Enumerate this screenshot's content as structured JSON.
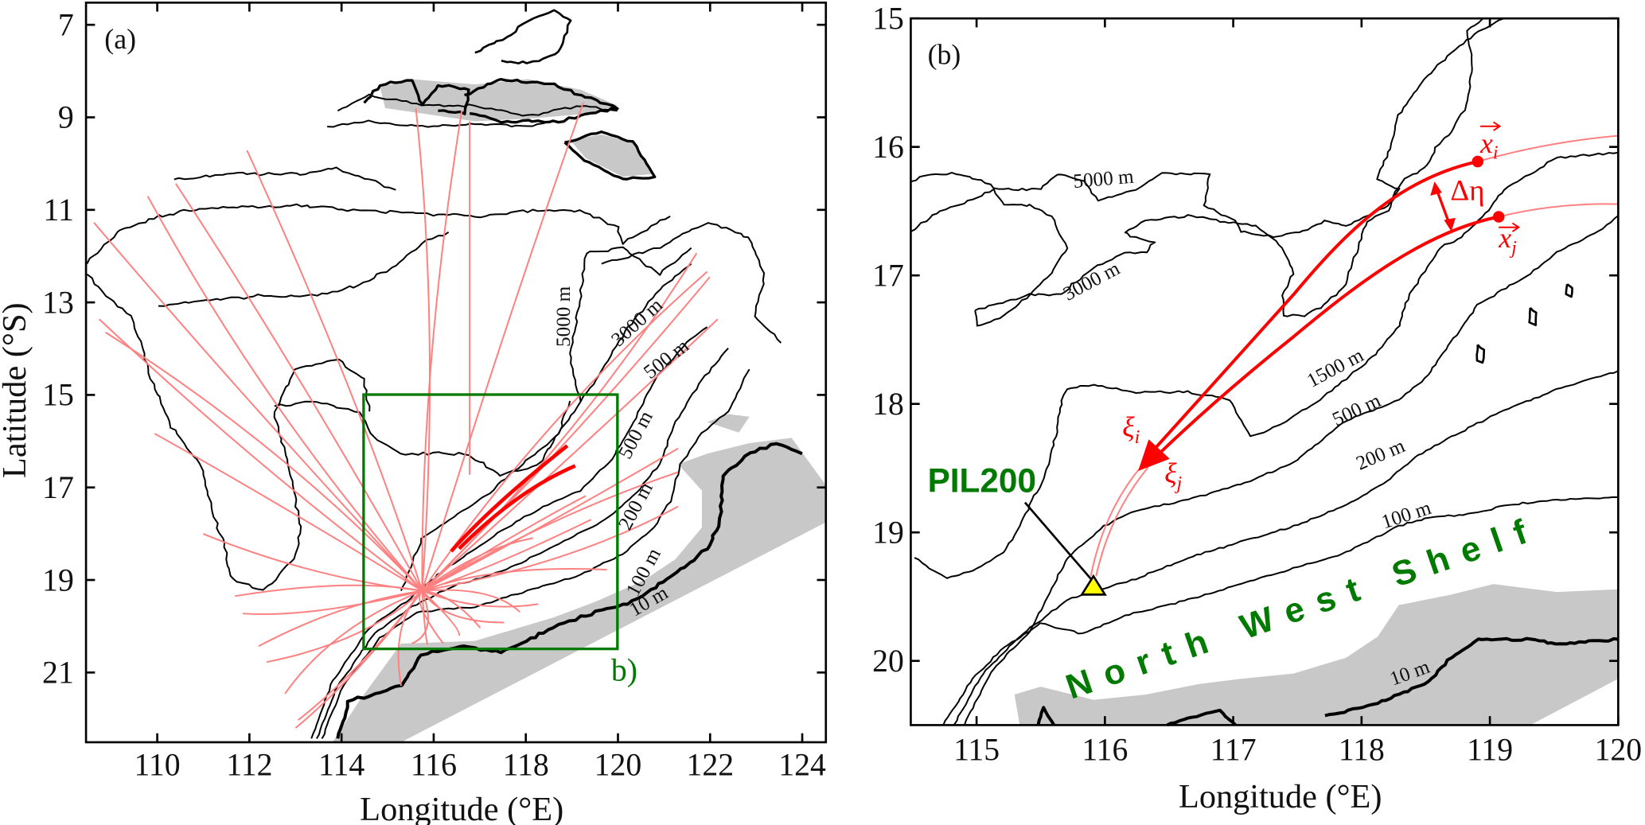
{
  "panel_a": {
    "label": "(a)",
    "xlabel": "Longitude (°E)",
    "ylabel": "Latitude (°S)",
    "xticks": [
      110,
      112,
      114,
      116,
      118,
      120,
      122,
      124
    ],
    "yticks": [
      7,
      9,
      11,
      13,
      15,
      17,
      19,
      21
    ],
    "xlim": [
      108.6,
      124.5
    ],
    "ylim": [
      6.5,
      22.5
    ],
    "inset_box": {
      "lon": [
        114.5,
        120
      ],
      "lat": [
        15,
        20.5
      ],
      "label": "b)"
    },
    "contour_labels": [
      "5000 m",
      "3000 m",
      "500 m",
      "500 m",
      "200 m",
      "100 m",
      "10 m"
    ]
  },
  "panel_b": {
    "label": "(b)",
    "xlabel": "Longitude (°E)",
    "xticks": [
      115,
      116,
      117,
      118,
      119,
      120
    ],
    "yticks": [
      15,
      16,
      17,
      18,
      19,
      20
    ],
    "xlim": [
      114.5,
      120
    ],
    "ylim": [
      15,
      20.5
    ],
    "contour_labels": [
      "5000 m",
      "3000 m",
      "1500 m",
      "500 m",
      "200 m",
      "100 m",
      "10 m"
    ],
    "station": {
      "name": "PIL200",
      "lon": 115.9,
      "lat": 19.43
    },
    "region_label": "North West Shelf",
    "annotations": {
      "x_i": {
        "base": "x",
        "sub": "i"
      },
      "x_j": {
        "base": "x",
        "sub": "j"
      },
      "xi_i": {
        "base": "ξ",
        "sub": "i"
      },
      "xi_j": {
        "base": "ξ",
        "sub": "j"
      },
      "delta_eta": "Δη"
    }
  },
  "colors": {
    "trajectory": "#ff8080",
    "highlight_trajectory": "#ff0000",
    "inset_box": "#007a00",
    "land": "#c8c8c8",
    "contour": "#000000",
    "station_marker": "#ffff00",
    "station_label": "#007a00"
  }
}
